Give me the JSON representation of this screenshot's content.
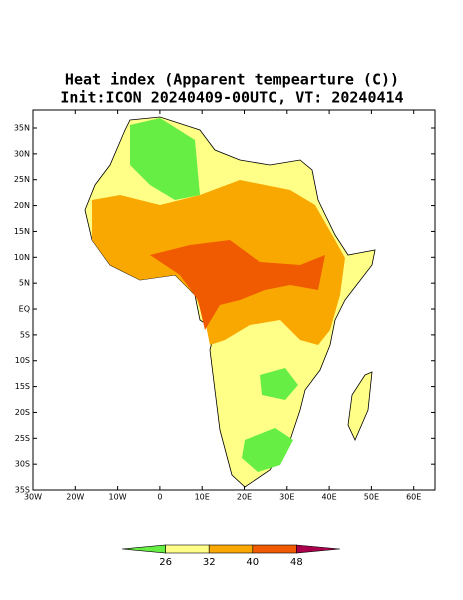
{
  "title": [
    "Heat index (Apparent tempearture (C))",
    "Init:ICON 20240409-00UTC, VT: 20240414"
  ],
  "map": {
    "lat_labels": [
      "35N",
      "30N",
      "25N",
      "20N",
      "15N",
      "10N",
      "5N",
      "EQ",
      "5S",
      "10S",
      "15S",
      "20S",
      "25S",
      "30S",
      "35S"
    ],
    "lon_labels": [
      "30W",
      "20W",
      "10W",
      "0",
      "10E",
      "20E",
      "30E",
      "40E",
      "50E",
      "60E"
    ]
  },
  "colorbar": {
    "levels": [
      26,
      32,
      40,
      48
    ],
    "colors": [
      "#66ee44",
      "#ffff88",
      "#f8a800",
      "#f05a00",
      "#a8004a"
    ]
  }
}
